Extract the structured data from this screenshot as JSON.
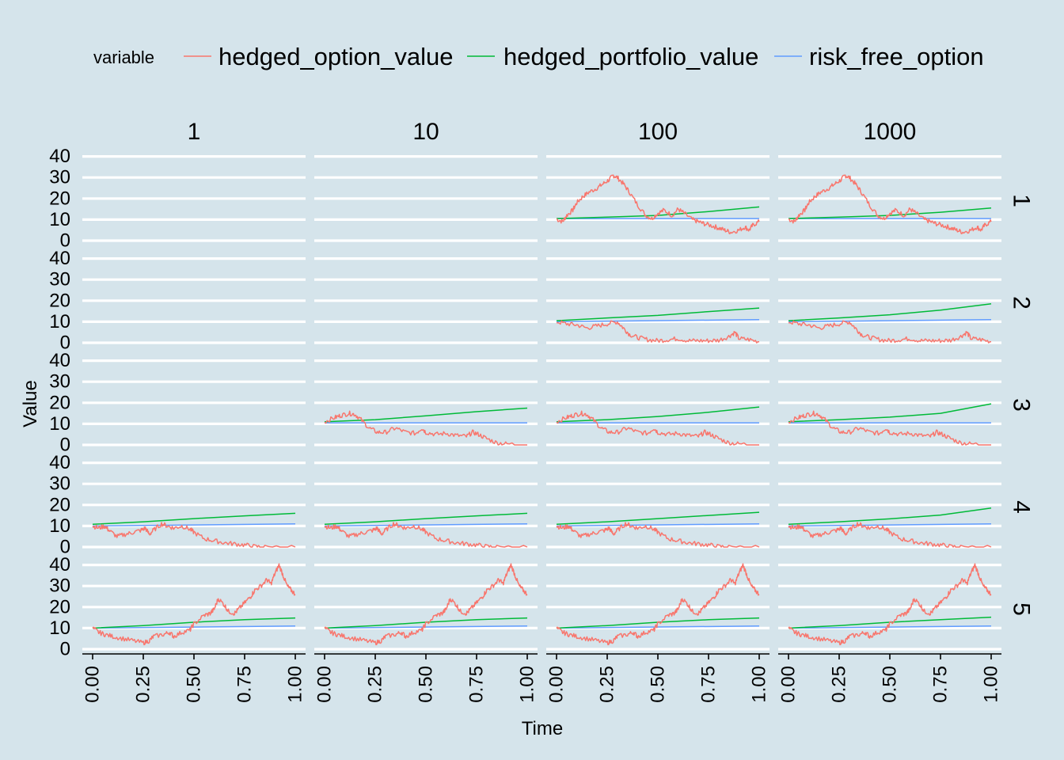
{
  "chart_data": {
    "type": "line",
    "xlabel": "Time",
    "ylabel": "Value",
    "xlim": [
      0,
      1
    ],
    "ylim": [
      0,
      40
    ],
    "x_ticks": [
      "0.00",
      "0.25",
      "0.50",
      "0.75",
      "1.00"
    ],
    "y_ticks": [
      "0",
      "10",
      "20",
      "30",
      "40"
    ],
    "grid": "horizontal only",
    "legend": {
      "title": "variable",
      "placement": "top",
      "entries": [
        {
          "name": "hedged_option_value",
          "color": "#f8766d"
        },
        {
          "name": "hedged_portfolio_value",
          "color": "#00ba38"
        },
        {
          "name": "risk_free_option",
          "color": "#619cff"
        }
      ]
    },
    "facet_columns": [
      "1",
      "10",
      "100",
      "1000"
    ],
    "facet_rows": [
      "1",
      "2",
      "3",
      "4",
      "5"
    ],
    "paths": {
      "A": [
        [
          0,
          10.2
        ],
        [
          0.03,
          9.0
        ],
        [
          0.05,
          12.0
        ],
        [
          0.08,
          14.5
        ],
        [
          0.1,
          18
        ],
        [
          0.13,
          21
        ],
        [
          0.16,
          23
        ],
        [
          0.2,
          25
        ],
        [
          0.23,
          27
        ],
        [
          0.26,
          29
        ],
        [
          0.28,
          31
        ],
        [
          0.3,
          30
        ],
        [
          0.33,
          27
        ],
        [
          0.36,
          23
        ],
        [
          0.4,
          17
        ],
        [
          0.44,
          12
        ],
        [
          0.47,
          10.5
        ],
        [
          0.5,
          13
        ],
        [
          0.53,
          14.5
        ],
        [
          0.57,
          12
        ],
        [
          0.6,
          15
        ],
        [
          0.63,
          13
        ],
        [
          0.67,
          10
        ],
        [
          0.7,
          9
        ],
        [
          0.73,
          8
        ],
        [
          0.77,
          7
        ],
        [
          0.8,
          6
        ],
        [
          0.83,
          5
        ],
        [
          0.86,
          4
        ],
        [
          0.9,
          5
        ],
        [
          0.93,
          6.5
        ],
        [
          0.95,
          5
        ],
        [
          0.97,
          7.5
        ],
        [
          1,
          9
        ]
      ],
      "B": [
        [
          0,
          10
        ],
        [
          0.05,
          9
        ],
        [
          0.1,
          8.5
        ],
        [
          0.15,
          7
        ],
        [
          0.2,
          8
        ],
        [
          0.25,
          9
        ],
        [
          0.3,
          10
        ],
        [
          0.33,
          7
        ],
        [
          0.36,
          4
        ],
        [
          0.4,
          2.5
        ],
        [
          0.45,
          1.5
        ],
        [
          0.5,
          1
        ],
        [
          0.55,
          1.5
        ],
        [
          0.6,
          2
        ],
        [
          0.65,
          1
        ],
        [
          0.7,
          1
        ],
        [
          0.75,
          1
        ],
        [
          0.8,
          1.2
        ],
        [
          0.85,
          3
        ],
        [
          0.88,
          5
        ],
        [
          0.9,
          2
        ],
        [
          0.95,
          1.5
        ],
        [
          1,
          0.5
        ]
      ],
      "C": [
        [
          0,
          11
        ],
        [
          0.05,
          13
        ],
        [
          0.08,
          14
        ],
        [
          0.12,
          15
        ],
        [
          0.15,
          14.5
        ],
        [
          0.18,
          12
        ],
        [
          0.22,
          8
        ],
        [
          0.26,
          6
        ],
        [
          0.3,
          6
        ],
        [
          0.35,
          8
        ],
        [
          0.4,
          6
        ],
        [
          0.45,
          5.5
        ],
        [
          0.48,
          8
        ],
        [
          0.5,
          6
        ],
        [
          0.55,
          5
        ],
        [
          0.6,
          5.5
        ],
        [
          0.65,
          4.5
        ],
        [
          0.7,
          4
        ],
        [
          0.73,
          6
        ],
        [
          0.76,
          5
        ],
        [
          0.8,
          3
        ],
        [
          0.85,
          1
        ],
        [
          0.9,
          0.5
        ],
        [
          1,
          0
        ]
      ],
      "D": [
        [
          0,
          10
        ],
        [
          0.03,
          9
        ],
        [
          0.06,
          10
        ],
        [
          0.08,
          8
        ],
        [
          0.12,
          5
        ],
        [
          0.16,
          6
        ],
        [
          0.2,
          7
        ],
        [
          0.24,
          8
        ],
        [
          0.26,
          9
        ],
        [
          0.28,
          6
        ],
        [
          0.3,
          8
        ],
        [
          0.34,
          11
        ],
        [
          0.37,
          10
        ],
        [
          0.4,
          9
        ],
        [
          0.44,
          10
        ],
        [
          0.48,
          8.5
        ],
        [
          0.5,
          7
        ],
        [
          0.55,
          4
        ],
        [
          0.6,
          3
        ],
        [
          0.65,
          2
        ],
        [
          0.7,
          1.5
        ],
        [
          0.75,
          1
        ],
        [
          0.8,
          0.2
        ],
        [
          0.85,
          0
        ],
        [
          1,
          0
        ]
      ],
      "E": [
        [
          0,
          10
        ],
        [
          0.03,
          8
        ],
        [
          0.06,
          7
        ],
        [
          0.1,
          6
        ],
        [
          0.15,
          5
        ],
        [
          0.2,
          4
        ],
        [
          0.25,
          3
        ],
        [
          0.28,
          4
        ],
        [
          0.3,
          6
        ],
        [
          0.35,
          7
        ],
        [
          0.38,
          8
        ],
        [
          0.4,
          6
        ],
        [
          0.44,
          8
        ],
        [
          0.48,
          9
        ],
        [
          0.5,
          12
        ],
        [
          0.55,
          16
        ],
        [
          0.58,
          17
        ],
        [
          0.6,
          19
        ],
        [
          0.62,
          24
        ],
        [
          0.65,
          21
        ],
        [
          0.67,
          18
        ],
        [
          0.7,
          17
        ],
        [
          0.72,
          19
        ],
        [
          0.75,
          22
        ],
        [
          0.78,
          25
        ],
        [
          0.8,
          28
        ],
        [
          0.83,
          30
        ],
        [
          0.86,
          33
        ],
        [
          0.88,
          31
        ],
        [
          0.9,
          36
        ],
        [
          0.92,
          40
        ],
        [
          0.94,
          35
        ],
        [
          0.96,
          30
        ],
        [
          0.98,
          28
        ],
        [
          1,
          26
        ]
      ]
    },
    "smooth": {
      "rf_flat": [
        [
          0,
          10.5
        ],
        [
          1,
          10.5
        ]
      ],
      "rf_rise": [
        [
          0,
          10
        ],
        [
          1,
          11
        ]
      ],
      "p_a1": [
        [
          0,
          10.5
        ],
        [
          0.25,
          11.2
        ],
        [
          0.5,
          12
        ],
        [
          0.75,
          13.8
        ],
        [
          1,
          16
        ]
      ],
      "p_a2": [
        [
          0,
          10.5
        ],
        [
          0.25,
          11.2
        ],
        [
          0.5,
          12
        ],
        [
          0.75,
          13.5
        ],
        [
          1,
          15.5
        ]
      ],
      "p_b1": [
        [
          0,
          10.5
        ],
        [
          0.25,
          11.8
        ],
        [
          0.5,
          13
        ],
        [
          0.75,
          14.8
        ],
        [
          1,
          16.5
        ]
      ],
      "p_b2": [
        [
          0,
          10.5
        ],
        [
          0.25,
          11.8
        ],
        [
          0.5,
          13.3
        ],
        [
          0.75,
          15.5
        ],
        [
          1,
          18.5
        ]
      ],
      "p_c1": [
        [
          0,
          11
        ],
        [
          0.25,
          12
        ],
        [
          0.5,
          13.8
        ],
        [
          0.75,
          15.8
        ],
        [
          1,
          17.5
        ]
      ],
      "p_c2": [
        [
          0,
          11
        ],
        [
          0.25,
          12
        ],
        [
          0.5,
          13.5
        ],
        [
          0.75,
          15.5
        ],
        [
          1,
          18
        ]
      ],
      "p_c3": [
        [
          0,
          11
        ],
        [
          0.25,
          12
        ],
        [
          0.5,
          13.2
        ],
        [
          0.75,
          15
        ],
        [
          1,
          19.5
        ]
      ],
      "p_d1": [
        [
          0,
          10.8
        ],
        [
          0.25,
          12
        ],
        [
          0.5,
          13.5
        ],
        [
          0.75,
          14.8
        ],
        [
          1,
          16
        ]
      ],
      "p_d2": [
        [
          0,
          10.8
        ],
        [
          0.25,
          12
        ],
        [
          0.5,
          13.5
        ],
        [
          0.75,
          15
        ],
        [
          1,
          16.5
        ]
      ],
      "p_d3": [
        [
          0,
          10.8
        ],
        [
          0.25,
          12
        ],
        [
          0.5,
          13.4
        ],
        [
          0.75,
          15.2
        ],
        [
          1,
          18.5
        ]
      ],
      "p_e1": [
        [
          0,
          10
        ],
        [
          0.25,
          11.2
        ],
        [
          0.5,
          12.8
        ],
        [
          0.75,
          14
        ],
        [
          1,
          14.8
        ]
      ],
      "p_e2": [
        [
          0,
          10
        ],
        [
          0.25,
          11.2
        ],
        [
          0.5,
          12.8
        ],
        [
          0.75,
          14
        ],
        [
          1,
          15.2
        ]
      ]
    },
    "panels": [
      {
        "row": 0,
        "col": 2,
        "option": "A",
        "portfolio": "p_a1",
        "risk_free": "rf_flat"
      },
      {
        "row": 0,
        "col": 3,
        "option": "A",
        "portfolio": "p_a2",
        "risk_free": "rf_flat"
      },
      {
        "row": 1,
        "col": 2,
        "option": "B",
        "portfolio": "p_b1",
        "risk_free": "rf_rise"
      },
      {
        "row": 1,
        "col": 3,
        "option": "B",
        "portfolio": "p_b2",
        "risk_free": "rf_rise"
      },
      {
        "row": 2,
        "col": 1,
        "option": "C",
        "portfolio": "p_c1",
        "risk_free": "rf_flat"
      },
      {
        "row": 2,
        "col": 2,
        "option": "C",
        "portfolio": "p_c2",
        "risk_free": "rf_flat"
      },
      {
        "row": 2,
        "col": 3,
        "option": "C",
        "portfolio": "p_c3",
        "risk_free": "rf_flat"
      },
      {
        "row": 3,
        "col": 0,
        "option": "D",
        "portfolio": "p_d1",
        "risk_free": "rf_rise"
      },
      {
        "row": 3,
        "col": 1,
        "option": "D",
        "portfolio": "p_d1",
        "risk_free": "rf_rise"
      },
      {
        "row": 3,
        "col": 2,
        "option": "D",
        "portfolio": "p_d2",
        "risk_free": "rf_rise"
      },
      {
        "row": 3,
        "col": 3,
        "option": "D",
        "portfolio": "p_d3",
        "risk_free": "rf_rise"
      },
      {
        "row": 4,
        "col": 0,
        "option": "E",
        "portfolio": "p_e1",
        "risk_free": "rf_rise"
      },
      {
        "row": 4,
        "col": 1,
        "option": "E",
        "portfolio": "p_e1",
        "risk_free": "rf_rise"
      },
      {
        "row": 4,
        "col": 2,
        "option": "E",
        "portfolio": "p_e1",
        "risk_free": "rf_rise"
      },
      {
        "row": 4,
        "col": 3,
        "option": "E",
        "portfolio": "p_e2",
        "risk_free": "rf_rise"
      }
    ]
  }
}
